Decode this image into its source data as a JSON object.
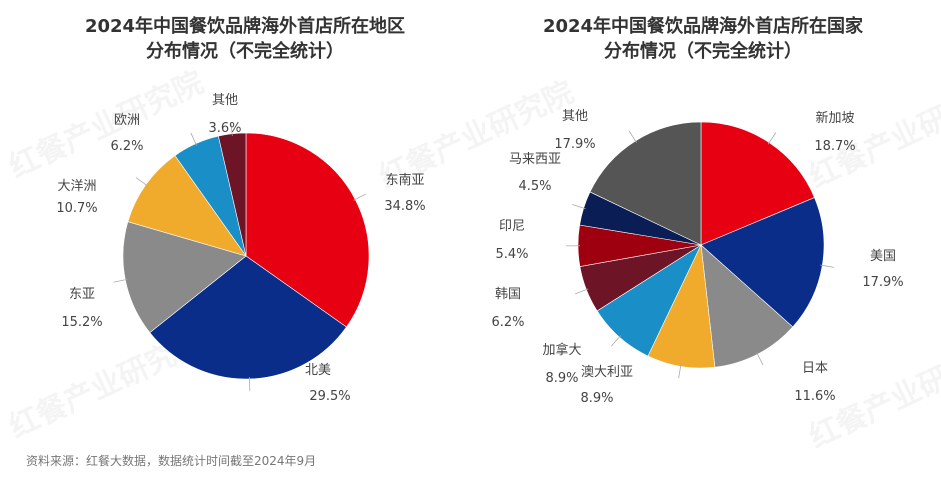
{
  "watermark": "红餐产业研究院",
  "source": "资料来源：红餐大数据，数据统计时间截至2024年9月",
  "chart_data": [
    {
      "type": "pie",
      "title": "2024年中国餐饮品牌海外首店所在地区分布情况（不完全统计）",
      "title_lines": [
        "2024年中国餐饮品牌海外首店所在地区",
        "分布情况（不完全统计）"
      ],
      "categories": [
        "东南亚",
        "北美",
        "东亚",
        "大洋洲",
        "欧洲",
        "其他"
      ],
      "values": [
        34.8,
        29.5,
        15.2,
        10.7,
        6.2,
        3.6
      ],
      "labels": [
        "34.8%",
        "29.5%",
        "15.2%",
        "10.7%",
        "6.2%",
        "3.6%"
      ],
      "colors": [
        "#e60012",
        "#0b2d8a",
        "#8a8a8a",
        "#f0ab2c",
        "#1a8ec6",
        "#6e1427"
      ],
      "start": "12 o'clock",
      "direction": "clockwise"
    },
    {
      "type": "pie",
      "title": "2024年中国餐饮品牌海外首店所在国家分布情况（不完全统计）",
      "title_lines": [
        "2024年中国餐饮品牌海外首店所在国家",
        "分布情况（不完全统计）"
      ],
      "categories": [
        "新加坡",
        "美国",
        "日本",
        "澳大利亚",
        "加拿大",
        "韩国",
        "印尼",
        "马来西亚",
        "其他"
      ],
      "values": [
        18.7,
        17.9,
        11.6,
        8.9,
        8.9,
        6.2,
        5.4,
        4.5,
        17.9
      ],
      "labels": [
        "18.7%",
        "17.9%",
        "11.6%",
        "8.9%",
        "8.9%",
        "6.2%",
        "5.4%",
        "4.5%",
        "17.9%"
      ],
      "colors": [
        "#e60012",
        "#0b2d8a",
        "#8a8a8a",
        "#f0ab2c",
        "#1a8ec6",
        "#6e1427",
        "#9e0010",
        "#0a1e55",
        "#555555"
      ],
      "start": "12 o'clock",
      "direction": "clockwise"
    }
  ]
}
